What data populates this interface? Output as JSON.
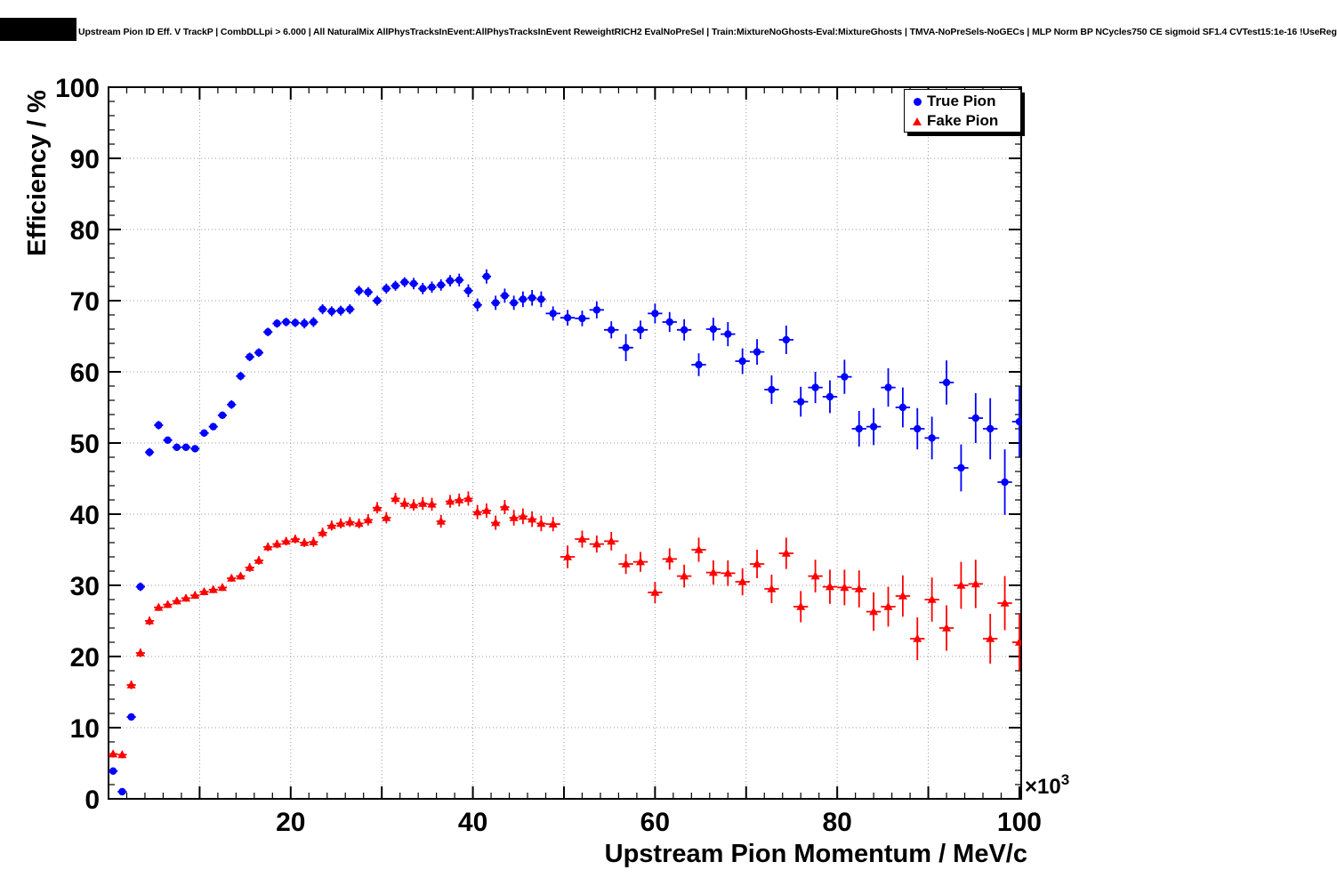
{
  "header": {
    "title": "Upstream Pion ID Eff. V TrackP | CombDLLpi > 6.000 | All NaturalMix AllPhysTracksInEvent:AllPhysTracksInEvent ReweightRICH2 EvalNoPreSel | Train:MixtureNoGhosts-Eval:MixtureGhosts | TMVA-NoPreSels-NoGECs | MLP Norm BP NCycles750 CE sigmoid SF1.4 CVTest15:1e-16 !UseReg"
  },
  "legend": {
    "position": "top-right",
    "entries": [
      {
        "label": "True Pion",
        "marker": "circle",
        "color": "#0000ff"
      },
      {
        "label": "Fake Pion",
        "marker": "triangle",
        "color": "#ff0000"
      }
    ]
  },
  "chart_data": {
    "type": "scatter",
    "title": "Upstream Pion ID Eff. V TrackP",
    "xlabel": "Upstream Pion Momentum / MeV/c",
    "ylabel": "Efficiency / %",
    "x_scale_base": "×10",
    "x_scale_exp": "3",
    "xlim": [
      0,
      100.2
    ],
    "ylim": [
      0,
      100
    ],
    "x_ticks": [
      20,
      40,
      60,
      80,
      100
    ],
    "y_ticks": [
      0,
      10,
      20,
      30,
      40,
      50,
      60,
      70,
      80,
      90,
      100
    ],
    "grid": true,
    "grid_style": "dotted",
    "legend_position": "top-right",
    "point_format": [
      "x_momentum_1e3_MeV",
      "efficiency_pct",
      "y_error_pct",
      "x_half_bin_width_1e3_MeV"
    ],
    "series": [
      {
        "name": "True Pion",
        "marker": "circle",
        "color": "#0000ff",
        "points": [
          [
            0.5,
            3.9,
            0.5,
            0.5
          ],
          [
            1.5,
            1.0,
            0.3,
            0.5
          ],
          [
            2.5,
            11.5,
            0.5,
            0.5
          ],
          [
            3.5,
            29.8,
            0.6,
            0.5
          ],
          [
            4.5,
            48.7,
            0.6,
            0.5
          ],
          [
            5.5,
            52.5,
            0.6,
            0.5
          ],
          [
            6.5,
            50.4,
            0.5,
            0.5
          ],
          [
            7.5,
            49.4,
            0.5,
            0.5
          ],
          [
            8.5,
            49.4,
            0.5,
            0.5
          ],
          [
            9.5,
            49.2,
            0.5,
            0.5
          ],
          [
            10.5,
            51.4,
            0.5,
            0.5
          ],
          [
            11.5,
            52.3,
            0.5,
            0.5
          ],
          [
            12.5,
            53.9,
            0.5,
            0.5
          ],
          [
            13.5,
            55.4,
            0.6,
            0.5
          ],
          [
            14.5,
            59.4,
            0.6,
            0.5
          ],
          [
            15.5,
            62.1,
            0.6,
            0.5
          ],
          [
            16.5,
            62.7,
            0.6,
            0.5
          ],
          [
            17.5,
            65.6,
            0.6,
            0.5
          ],
          [
            18.5,
            66.8,
            0.6,
            0.5
          ],
          [
            19.5,
            67.0,
            0.6,
            0.5
          ],
          [
            20.5,
            66.9,
            0.6,
            0.5
          ],
          [
            21.5,
            66.8,
            0.7,
            0.5
          ],
          [
            22.5,
            67.0,
            0.7,
            0.5
          ],
          [
            23.5,
            68.8,
            0.7,
            0.5
          ],
          [
            24.5,
            68.5,
            0.7,
            0.5
          ],
          [
            25.5,
            68.6,
            0.7,
            0.5
          ],
          [
            26.5,
            68.8,
            0.7,
            0.5
          ],
          [
            27.5,
            71.4,
            0.7,
            0.5
          ],
          [
            28.5,
            71.2,
            0.7,
            0.5
          ],
          [
            29.5,
            70.0,
            0.7,
            0.5
          ],
          [
            30.5,
            71.7,
            0.7,
            0.5
          ],
          [
            31.5,
            72.1,
            0.7,
            0.5
          ],
          [
            32.5,
            72.6,
            0.7,
            0.5
          ],
          [
            33.5,
            72.4,
            0.8,
            0.5
          ],
          [
            34.5,
            71.7,
            0.8,
            0.5
          ],
          [
            35.5,
            71.9,
            0.8,
            0.5
          ],
          [
            36.5,
            72.2,
            0.8,
            0.5
          ],
          [
            37.5,
            72.8,
            0.8,
            0.5
          ],
          [
            38.5,
            72.9,
            0.9,
            0.5
          ],
          [
            39.5,
            71.4,
            0.9,
            0.5
          ],
          [
            40.5,
            69.4,
            0.9,
            0.5
          ],
          [
            41.5,
            73.4,
            1.0,
            0.5
          ],
          [
            42.5,
            69.7,
            1.0,
            0.5
          ],
          [
            43.5,
            70.7,
            1.0,
            0.5
          ],
          [
            44.5,
            69.7,
            1.0,
            0.5
          ],
          [
            45.5,
            70.2,
            1.1,
            0.5
          ],
          [
            46.5,
            70.4,
            1.1,
            0.5
          ],
          [
            47.5,
            70.2,
            1.1,
            0.5
          ],
          [
            48.8,
            68.2,
            1.0,
            0.8
          ],
          [
            50.4,
            67.6,
            1.1,
            0.8
          ],
          [
            52.0,
            67.5,
            1.1,
            0.8
          ],
          [
            53.6,
            68.7,
            1.2,
            0.8
          ],
          [
            55.2,
            65.9,
            1.2,
            0.8
          ],
          [
            56.8,
            63.4,
            1.9,
            0.8
          ],
          [
            58.4,
            65.9,
            1.3,
            0.8
          ],
          [
            60.0,
            68.2,
            1.4,
            0.8
          ],
          [
            61.6,
            67.0,
            1.4,
            0.8
          ],
          [
            63.2,
            65.9,
            1.5,
            0.8
          ],
          [
            64.8,
            61.0,
            1.6,
            0.8
          ],
          [
            66.4,
            66.0,
            1.6,
            0.8
          ],
          [
            68.0,
            65.3,
            1.7,
            0.8
          ],
          [
            69.6,
            61.5,
            1.8,
            0.8
          ],
          [
            71.2,
            62.8,
            1.8,
            0.8
          ],
          [
            72.8,
            57.5,
            2.0,
            0.8
          ],
          [
            74.4,
            64.5,
            2.0,
            0.8
          ],
          [
            76.0,
            55.8,
            2.1,
            0.8
          ],
          [
            77.6,
            57.8,
            2.2,
            0.8
          ],
          [
            79.2,
            56.5,
            2.3,
            0.8
          ],
          [
            80.8,
            59.3,
            2.4,
            0.8
          ],
          [
            82.4,
            52.0,
            2.5,
            0.8
          ],
          [
            84.0,
            52.3,
            2.6,
            0.8
          ],
          [
            85.6,
            57.8,
            2.7,
            0.8
          ],
          [
            87.2,
            55.0,
            2.8,
            0.8
          ],
          [
            88.8,
            52.0,
            2.9,
            0.8
          ],
          [
            90.4,
            50.7,
            3.0,
            0.8
          ],
          [
            92.0,
            58.5,
            3.1,
            0.8
          ],
          [
            93.6,
            46.5,
            3.3,
            0.8
          ],
          [
            95.2,
            53.5,
            3.5,
            0.8
          ],
          [
            96.8,
            52.0,
            4.3,
            0.8
          ],
          [
            98.4,
            44.5,
            4.6,
            0.8
          ],
          [
            100.0,
            53.0,
            5.0,
            0.8
          ]
        ]
      },
      {
        "name": "Fake Pion",
        "marker": "triangle",
        "color": "#ff0000",
        "points": [
          [
            0.5,
            6.3,
            0.5,
            0.5
          ],
          [
            1.5,
            6.2,
            0.5,
            0.5
          ],
          [
            2.5,
            16.0,
            0.6,
            0.5
          ],
          [
            3.5,
            20.5,
            0.6,
            0.5
          ],
          [
            4.5,
            25.0,
            0.6,
            0.5
          ],
          [
            5.5,
            26.9,
            0.5,
            0.5
          ],
          [
            6.5,
            27.3,
            0.5,
            0.5
          ],
          [
            7.5,
            27.8,
            0.5,
            0.5
          ],
          [
            8.5,
            28.2,
            0.5,
            0.5
          ],
          [
            9.5,
            28.6,
            0.5,
            0.5
          ],
          [
            10.5,
            29.1,
            0.5,
            0.5
          ],
          [
            11.5,
            29.4,
            0.5,
            0.5
          ],
          [
            12.5,
            29.7,
            0.5,
            0.5
          ],
          [
            13.5,
            31.0,
            0.5,
            0.5
          ],
          [
            14.5,
            31.3,
            0.5,
            0.5
          ],
          [
            15.5,
            32.5,
            0.6,
            0.5
          ],
          [
            16.5,
            33.5,
            0.6,
            0.5
          ],
          [
            17.5,
            35.4,
            0.6,
            0.5
          ],
          [
            18.5,
            35.8,
            0.6,
            0.5
          ],
          [
            19.5,
            36.2,
            0.6,
            0.5
          ],
          [
            20.5,
            36.5,
            0.6,
            0.5
          ],
          [
            21.5,
            36.0,
            0.6,
            0.5
          ],
          [
            22.5,
            36.1,
            0.7,
            0.5
          ],
          [
            23.5,
            37.4,
            0.7,
            0.5
          ],
          [
            24.5,
            38.4,
            0.7,
            0.5
          ],
          [
            25.5,
            38.7,
            0.7,
            0.5
          ],
          [
            26.5,
            38.9,
            0.7,
            0.5
          ],
          [
            27.5,
            38.7,
            0.7,
            0.5
          ],
          [
            28.5,
            39.2,
            0.8,
            0.5
          ],
          [
            29.5,
            40.9,
            0.8,
            0.5
          ],
          [
            30.5,
            39.5,
            0.8,
            0.5
          ],
          [
            31.5,
            42.2,
            0.8,
            0.5
          ],
          [
            32.5,
            41.5,
            0.8,
            0.5
          ],
          [
            33.5,
            41.3,
            0.8,
            0.5
          ],
          [
            34.5,
            41.5,
            0.9,
            0.5
          ],
          [
            35.5,
            41.4,
            0.9,
            0.5
          ],
          [
            36.5,
            39.0,
            0.9,
            0.5
          ],
          [
            37.5,
            41.8,
            0.9,
            0.5
          ],
          [
            38.5,
            42.0,
            0.9,
            0.5
          ],
          [
            39.5,
            42.2,
            1.0,
            0.5
          ],
          [
            40.5,
            40.3,
            1.0,
            0.5
          ],
          [
            41.5,
            40.5,
            1.0,
            0.5
          ],
          [
            42.5,
            38.8,
            1.0,
            0.5
          ],
          [
            43.5,
            41.0,
            1.0,
            0.5
          ],
          [
            44.5,
            39.5,
            1.1,
            0.5
          ],
          [
            45.5,
            39.7,
            1.1,
            0.5
          ],
          [
            46.5,
            39.3,
            1.1,
            0.5
          ],
          [
            47.5,
            38.7,
            1.1,
            0.5
          ],
          [
            48.8,
            38.6,
            1.0,
            0.8
          ],
          [
            50.4,
            34.0,
            1.6,
            0.8
          ],
          [
            52.0,
            36.5,
            1.2,
            0.8
          ],
          [
            53.6,
            35.8,
            1.2,
            0.8
          ],
          [
            55.2,
            36.2,
            1.3,
            0.8
          ],
          [
            56.8,
            33.0,
            1.4,
            0.8
          ],
          [
            58.4,
            33.3,
            1.4,
            0.8
          ],
          [
            60.0,
            29.0,
            1.5,
            0.8
          ],
          [
            61.6,
            33.7,
            1.5,
            0.8
          ],
          [
            63.2,
            31.3,
            1.6,
            0.8
          ],
          [
            64.8,
            35.0,
            1.7,
            0.8
          ],
          [
            66.4,
            31.8,
            1.7,
            0.8
          ],
          [
            68.0,
            31.7,
            1.8,
            0.8
          ],
          [
            69.6,
            30.5,
            1.9,
            0.8
          ],
          [
            71.2,
            33.0,
            2.0,
            0.8
          ],
          [
            72.8,
            29.5,
            2.0,
            0.8
          ],
          [
            74.4,
            34.5,
            2.2,
            0.8
          ],
          [
            76.0,
            27.0,
            2.2,
            0.8
          ],
          [
            77.6,
            31.3,
            2.3,
            0.8
          ],
          [
            79.2,
            29.8,
            2.4,
            0.8
          ],
          [
            80.8,
            29.7,
            2.5,
            0.8
          ],
          [
            82.4,
            29.5,
            2.6,
            0.8
          ],
          [
            84.0,
            26.3,
            2.7,
            0.8
          ],
          [
            85.6,
            27.0,
            2.8,
            0.8
          ],
          [
            87.2,
            28.5,
            2.9,
            0.8
          ],
          [
            88.8,
            22.5,
            3.0,
            0.8
          ],
          [
            90.4,
            28.0,
            3.1,
            0.8
          ],
          [
            92.0,
            24.0,
            3.2,
            0.8
          ],
          [
            93.6,
            30.0,
            3.3,
            0.8
          ],
          [
            95.2,
            30.2,
            3.4,
            0.8
          ],
          [
            96.8,
            22.5,
            3.5,
            0.8
          ],
          [
            98.4,
            27.5,
            3.8,
            0.8
          ],
          [
            100.0,
            22.0,
            4.0,
            0.8
          ]
        ]
      }
    ]
  }
}
